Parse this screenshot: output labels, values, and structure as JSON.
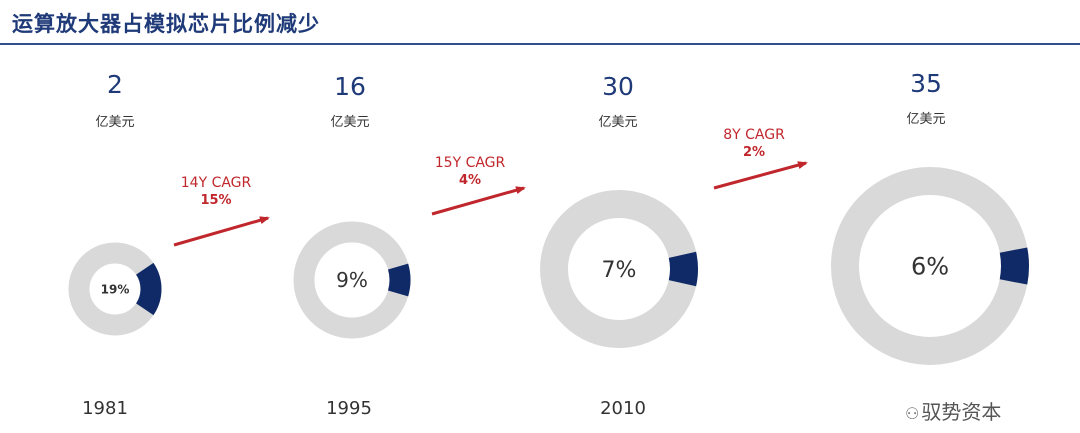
{
  "title": "运算放大器占模拟芯片比例减少",
  "chart_data": {
    "type": "pie",
    "title": "运算放大器占模拟芯片比例减少",
    "unit": "亿美元",
    "colors": {
      "share": "#0f2a66",
      "rest": "#d9d9d9",
      "arrow": "#c0272d",
      "accent": "#1f3a78"
    },
    "items": [
      {
        "year": "1981",
        "market": "2",
        "unit": "亿美元",
        "share": 19,
        "share_label": "19%"
      },
      {
        "year": "1995",
        "market": "16",
        "unit": "亿美元",
        "share": 9,
        "share_label": "9%"
      },
      {
        "year": "2010",
        "market": "30",
        "unit": "亿美元",
        "share": 7,
        "share_label": "7%"
      },
      {
        "year": "",
        "market": "35",
        "unit": "亿美元",
        "share": 6,
        "share_label": "6%"
      }
    ],
    "cagr": [
      {
        "label": "14Y CAGR",
        "rate": "15%"
      },
      {
        "label": "15Y CAGR",
        "rate": "4%"
      },
      {
        "label": "8Y CAGR",
        "rate": "2%"
      }
    ]
  },
  "watermark": {
    "icon": "wechat-icon",
    "text": "驭势资本"
  }
}
